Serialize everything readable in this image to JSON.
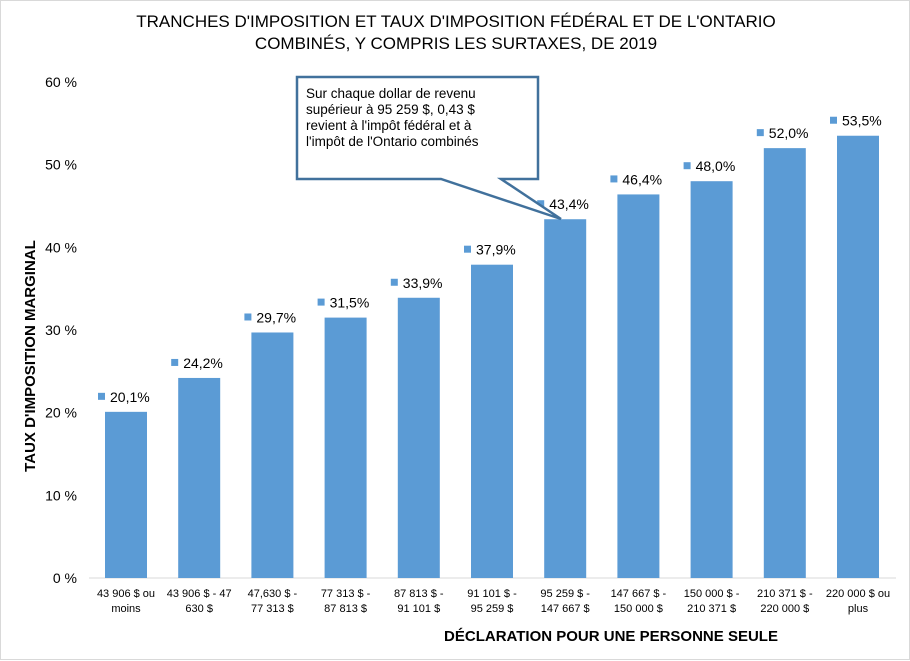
{
  "chart_data": {
    "type": "bar",
    "title": "TRANCHES D'IMPOSITION ET TAUX D'IMPOSITION FÉDÉRAL ET DE L'ONTARIO COMBINÉS, Y COMPRIS LES SURTAXES, DE 2019",
    "title_lines": [
      "TRANCHES D'IMPOSITION ET TAUX D'IMPOSITION FÉDÉRAL ET DE L'ONTARIO",
      "COMBINÉS, Y COMPRIS LES SURTAXES, DE 2019"
    ],
    "xlabel": "DÉCLARATION POUR UNE PERSONNE SEULE",
    "ylabel": "TAUX D'IMPOSITION MARGINAL",
    "ylim": [
      0,
      60
    ],
    "yticks": [
      "0 %",
      "10 %",
      "20 %",
      "30 %",
      "40 %",
      "50 %",
      "60 %"
    ],
    "categories": [
      [
        "43 906 $ ou",
        "moins"
      ],
      [
        "43 906 $ - 47",
        "630 $"
      ],
      [
        "47,630 $ -",
        "77 313 $"
      ],
      [
        "77 313 $ -",
        "87 813 $"
      ],
      [
        "87 813 $ -",
        "91 101 $"
      ],
      [
        "91 101 $ -",
        "95 259 $"
      ],
      [
        "95 259 $ -",
        "147 667 $"
      ],
      [
        "147 667 $ -",
        "150 000 $"
      ],
      [
        "150 000 $ -",
        "210 371 $"
      ],
      [
        "210 371 $ -",
        "220 000 $"
      ],
      [
        "220 000 $ ou",
        "plus"
      ]
    ],
    "values": [
      20.1,
      24.2,
      29.7,
      31.5,
      33.9,
      37.9,
      43.4,
      46.4,
      48.0,
      52.0,
      53.5
    ],
    "data_labels": [
      "20,1%",
      "24,2%",
      "29,7%",
      "31,5%",
      "33,9%",
      "37,9%",
      "43,4%",
      "46,4%",
      "48,0%",
      "52,0%",
      "53,5%"
    ],
    "grid": false,
    "bar_color": "#5B9BD5",
    "annotation": {
      "lines": [
        "Sur chaque dollar de revenu",
        "supérieur à 95 259 $, 0,43 $",
        "revient à l'impôt fédéral et à",
        "l'impôt de l'Ontario combinés"
      ],
      "points_to": "95 259 $ - 147 667 $",
      "border_color": "#41719C"
    }
  }
}
